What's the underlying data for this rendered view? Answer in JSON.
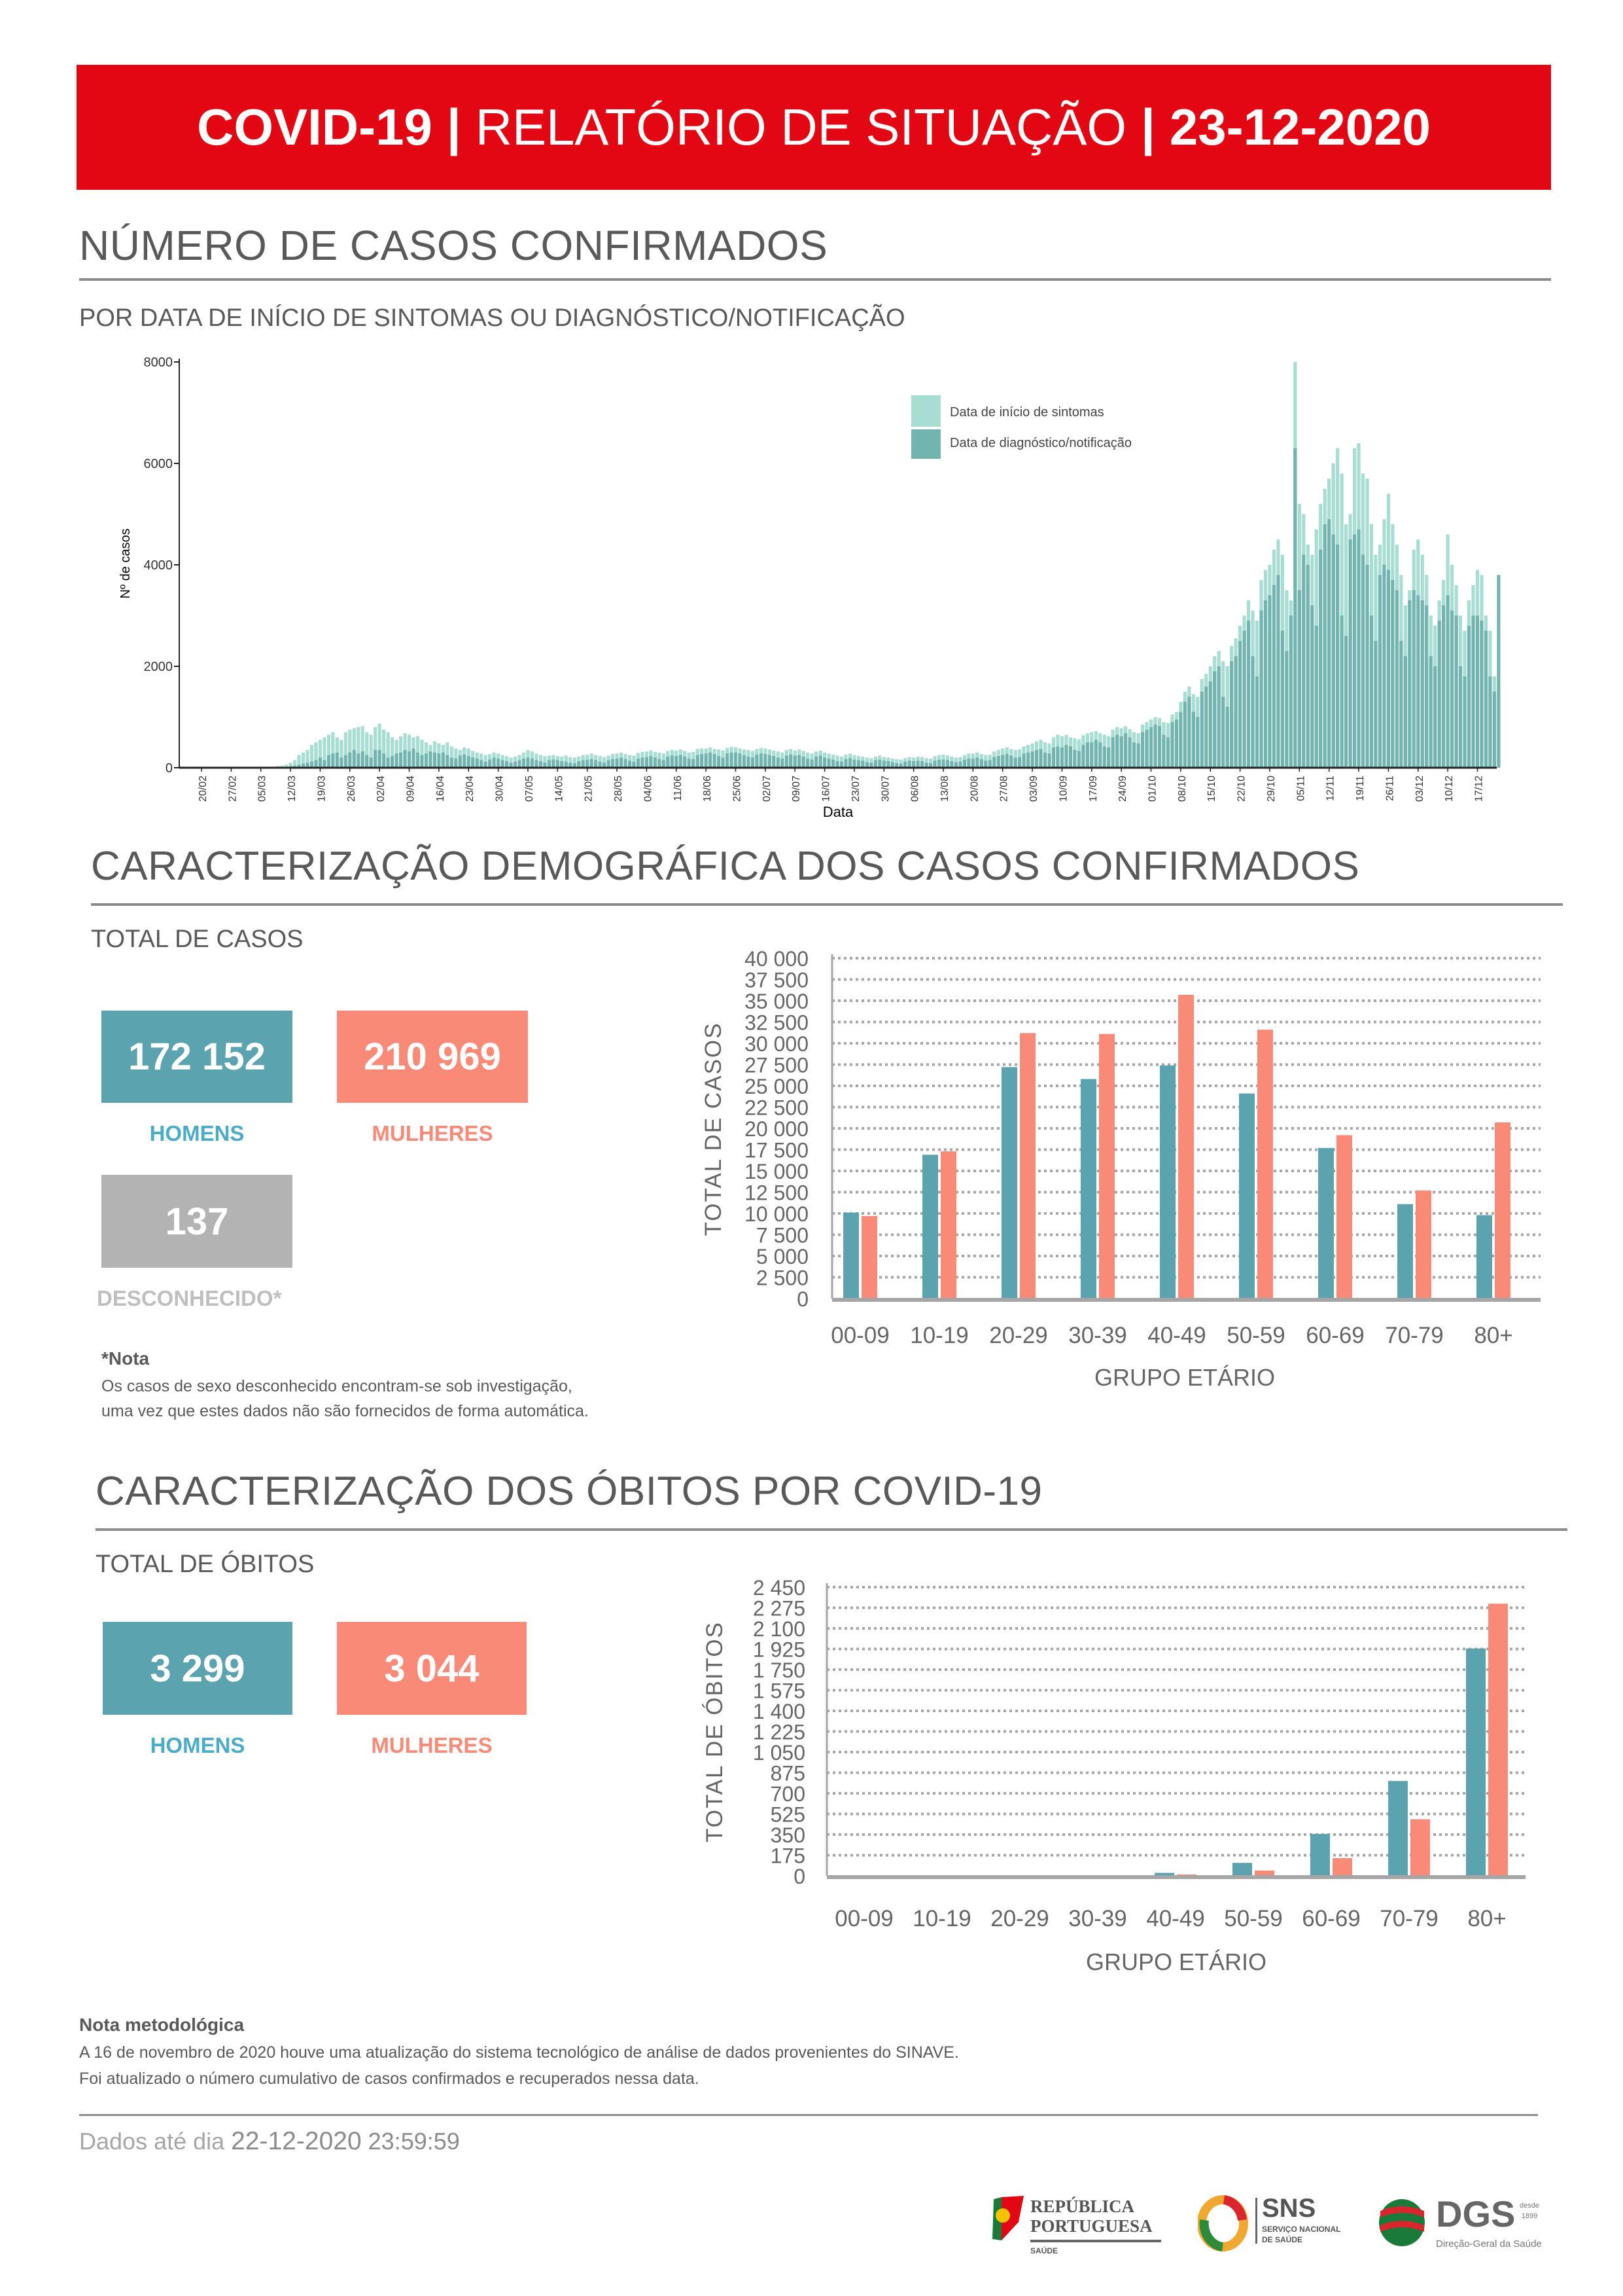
{
  "header": {
    "part1": "COVID-19",
    "sep": "|",
    "part2": "RELATÓRIO DE SITUAÇÃO",
    "date": "23-12-2020",
    "color": "#e30613"
  },
  "section1": {
    "title": "NÚMERO DE CASOS CONFIRMADOS",
    "subtitle": "POR DATA DE INÍCIO DE SINTOMAS OU DIAGNÓSTICO/NOTIFICAÇÃO"
  },
  "section2": {
    "title": "CARACTERIZAÇÃO DEMOGRÁFICA DOS CASOS CONFIRMADOS",
    "total_label": "TOTAL DE CASOS",
    "men_value": "172 152",
    "men_label": "HOMENS",
    "women_value": "210 969",
    "women_label": "MULHERES",
    "unknown_value": "137",
    "unknown_label": "DESCONHECIDO*",
    "note_title": "*Nota",
    "note_line1": "Os casos de sexo desconhecido encontram-se sob investigação,",
    "note_line2": "uma vez que estes dados não são fornecidos de forma automática."
  },
  "section3": {
    "title": "CARACTERIZAÇÃO DOS ÓBITOS POR COVID-19",
    "total_label": "TOTAL DE ÓBITOS",
    "men_value": "3 299",
    "men_label": "HOMENS",
    "women_value": "3 044",
    "women_label": "MULHERES"
  },
  "methodology": {
    "title": "Nota metodológica",
    "line1": "A 16 de novembro de 2020 houve uma atualização do sistema tecnológico de análise de dados provenientes do SINAVE.",
    "line2": "Foi atualizado o número cumulativo de casos confirmados e recuperados nessa data."
  },
  "footer": {
    "prefix": "Dados até dia ",
    "date": "22-12-2020",
    "time": " 23:59:59"
  },
  "logos": {
    "republica": {
      "line1": "REPÚBLICA",
      "line2": "PORTUGUESA",
      "line3": "SAÚDE"
    },
    "sns": {
      "line1": "SNS",
      "line2": "SERVIÇO NACIONAL",
      "line3": "DE SAÚDE"
    },
    "dgs": {
      "line1": "DGS",
      "since": "desde",
      "year": "1899",
      "line2": "Direção-Geral da Saúde"
    }
  },
  "colors": {
    "men": "#5ba3ae",
    "women": "#fa8a78",
    "unknown": "#b3b3b3",
    "men_label": "#4bacc6",
    "onset": "#a8ddd4",
    "notification": "#72b5b0"
  },
  "chart_data": [
    {
      "type": "bar",
      "ylabel": "Nº de casos",
      "xlabel": "Data",
      "ylim": [
        0,
        8000
      ],
      "yticks": [
        0,
        2000,
        4000,
        6000,
        8000
      ],
      "grid": false,
      "legend_position": "top-right",
      "x_tick_labels": [
        "20/02",
        "27/02",
        "05/03",
        "12/03",
        "19/03",
        "26/03",
        "02/04",
        "09/04",
        "16/04",
        "23/04",
        "30/04",
        "07/05",
        "14/05",
        "21/05",
        "28/05",
        "04/06",
        "11/06",
        "18/06",
        "25/06",
        "02/07",
        "09/07",
        "16/07",
        "23/07",
        "30/07",
        "06/08",
        "13/08",
        "20/08",
        "27/08",
        "03/09",
        "10/09",
        "17/09",
        "24/09",
        "01/10",
        "08/10",
        "15/10",
        "22/10",
        "29/10",
        "05/11",
        "12/11",
        "19/11",
        "26/11",
        "03/12",
        "10/12",
        "17/12"
      ],
      "series": [
        {
          "name": "Data de início de sintomas",
          "color": "#a8ddd4",
          "values": [
            0,
            0,
            0,
            0,
            0,
            0,
            0,
            0,
            0,
            0,
            1,
            2,
            3,
            5,
            8,
            10,
            15,
            20,
            30,
            40,
            60,
            100,
            150,
            250,
            300,
            350,
            450,
            500,
            550,
            600,
            650,
            700,
            600,
            550,
            700,
            750,
            780,
            800,
            820,
            700,
            650,
            800,
            870,
            750,
            700,
            600,
            550,
            620,
            680,
            650,
            600,
            620,
            550,
            500,
            450,
            520,
            480,
            450,
            500,
            420,
            380,
            350,
            400,
            380,
            330,
            300,
            280,
            250,
            270,
            300,
            280,
            250,
            230,
            200,
            220,
            250,
            300,
            350,
            320,
            280,
            250,
            230,
            240,
            250,
            230,
            220,
            240,
            210,
            200,
            220,
            250,
            260,
            280,
            250,
            230,
            210,
            240,
            270,
            280,
            300,
            270,
            250,
            240,
            290,
            310,
            320,
            340,
            310,
            300,
            280,
            330,
            350,
            340,
            360,
            330,
            300,
            310,
            370,
            380,
            380,
            400,
            370,
            360,
            340,
            390,
            410,
            400,
            380,
            360,
            350,
            330,
            370,
            390,
            380,
            360,
            340,
            320,
            300,
            350,
            370,
            340,
            360,
            330,
            300,
            280,
            320,
            340,
            300,
            280,
            260,
            240,
            220,
            260,
            280,
            250,
            230,
            220,
            200,
            190,
            220,
            240,
            210,
            200,
            180,
            170,
            160,
            190,
            210,
            200,
            220,
            210,
            190,
            180,
            230,
            250,
            260,
            240,
            220,
            200,
            210,
            250,
            280,
            280,
            300,
            270,
            250,
            260,
            320,
            350,
            380,
            400,
            370,
            350,
            360,
            420,
            450,
            480,
            520,
            550,
            500,
            480,
            600,
            650,
            620,
            650,
            600,
            580,
            560,
            640,
            680,
            700,
            720,
            680,
            650,
            620,
            750,
            800,
            780,
            820,
            760,
            700,
            680,
            850,
            900,
            950,
            1000,
            980,
            900,
            880,
            1050,
            1100,
            1300,
            1500,
            1600,
            1450,
            1400,
            1750,
            1850,
            2000,
            2200,
            2300,
            2100,
            2000,
            2400,
            2550,
            2800,
            3000,
            3300,
            3100,
            2900,
            3700,
            3900,
            4000,
            4300,
            4500,
            4200,
            3500,
            3300,
            8000,
            5200,
            5000,
            4400,
            4200,
            4700,
            5200,
            5500,
            5700,
            6000,
            6300,
            5800,
            4800,
            5000,
            6300,
            6400,
            5800,
            5700,
            4800,
            4200,
            4400,
            4900,
            5400,
            4800,
            4400,
            3800,
            3200,
            3500,
            4300,
            4500,
            4200,
            3800,
            3000,
            2800,
            3300,
            3700,
            4600,
            4000,
            3600,
            3000,
            2700,
            3300,
            3600,
            3900,
            3800,
            3000,
            2700,
            1800,
            1500
          ]
        },
        {
          "name": "Data de diagnóstico/notificação",
          "color": "#72b5b0",
          "values": [
            0,
            0,
            0,
            0,
            0,
            0,
            0,
            0,
            0,
            0,
            0,
            0,
            0,
            2,
            2,
            3,
            5,
            8,
            10,
            15,
            20,
            30,
            40,
            60,
            80,
            100,
            120,
            150,
            200,
            150,
            250,
            280,
            300,
            200,
            250,
            300,
            350,
            280,
            320,
            250,
            200,
            350,
            350,
            280,
            200,
            230,
            280,
            300,
            350,
            320,
            380,
            300,
            250,
            280,
            320,
            300,
            280,
            300,
            250,
            200,
            180,
            240,
            260,
            230,
            200,
            180,
            150,
            120,
            160,
            200,
            180,
            150,
            130,
            100,
            120,
            150,
            180,
            200,
            180,
            150,
            130,
            100,
            150,
            160,
            150,
            130,
            120,
            100,
            90,
            130,
            150,
            160,
            170,
            150,
            120,
            100,
            150,
            170,
            180,
            200,
            170,
            140,
            120,
            180,
            200,
            210,
            230,
            200,
            170,
            150,
            220,
            240,
            230,
            250,
            220,
            180,
            170,
            250,
            270,
            280,
            300,
            270,
            230,
            200,
            280,
            300,
            300,
            280,
            250,
            220,
            200,
            260,
            280,
            270,
            250,
            230,
            200,
            180,
            240,
            260,
            240,
            250,
            220,
            180,
            160,
            220,
            240,
            200,
            180,
            160,
            130,
            120,
            170,
            190,
            160,
            150,
            140,
            110,
            100,
            150,
            160,
            140,
            130,
            110,
            90,
            80,
            120,
            140,
            130,
            140,
            130,
            100,
            90,
            140,
            160,
            160,
            150,
            130,
            110,
            120,
            160,
            180,
            180,
            200,
            170,
            140,
            150,
            210,
            230,
            250,
            270,
            240,
            200,
            210,
            280,
            300,
            320,
            350,
            370,
            300,
            280,
            400,
            420,
            400,
            450,
            420,
            350,
            330,
            450,
            500,
            500,
            550,
            500,
            420,
            400,
            600,
            650,
            620,
            680,
            600,
            500,
            480,
            700,
            750,
            800,
            850,
            820,
            650,
            600,
            900,
            950,
            1100,
            1300,
            1400,
            1100,
            1000,
            1500,
            1600,
            1700,
            1900,
            2000,
            1400,
            1200,
            2100,
            2200,
            2500,
            2700,
            2900,
            2200,
            1800,
            3100,
            3300,
            3400,
            3600,
            3800,
            2700,
            2300,
            3000,
            6300,
            3500,
            4200,
            4000,
            3200,
            2800,
            4300,
            4800,
            4900,
            4600,
            4400,
            3000,
            2600,
            4500,
            4600,
            4700,
            4200,
            4000,
            3000,
            2500,
            3800,
            4000,
            3900,
            3700,
            3500,
            2500,
            2200,
            3300,
            3500,
            3400,
            3300,
            3200,
            2200,
            2000,
            2900,
            3200,
            3400,
            3100,
            3000,
            2000,
            1800,
            2800,
            3000,
            3000,
            2900,
            2700,
            1800,
            1500,
            3800
          ]
        }
      ]
    },
    {
      "type": "bar",
      "ylabel": "TOTAL DE CASOS",
      "xlabel": "GRUPO ETÁRIO",
      "ylim": [
        0,
        40000
      ],
      "yticks": [
        "0",
        "2 500",
        "5 000",
        "7 500",
        "10 000",
        "12 500",
        "15 000",
        "17 500",
        "20 000",
        "22 500",
        "25 000",
        "27 500",
        "30 000",
        "32 500",
        "35 000",
        "37 500",
        "40 000"
      ],
      "ytick_step": 2500,
      "grid": true,
      "categories": [
        "00-09",
        "10-19",
        "20-29",
        "30-39",
        "40-49",
        "50-59",
        "60-69",
        "70-79",
        "80+"
      ],
      "series": [
        {
          "color": "#5ba3ae",
          "values": [
            10100,
            16900,
            27200,
            25800,
            27400,
            24100,
            17700,
            11100,
            9800
          ]
        },
        {
          "color": "#fa8a78",
          "values": [
            9700,
            17300,
            31200,
            31100,
            35700,
            31600,
            19200,
            12700,
            20700
          ]
        }
      ]
    },
    {
      "type": "bar",
      "ylabel": "TOTAL DE ÓBITOS",
      "xlabel": "GRUPO ETÁRIO",
      "ylim": [
        0,
        2450
      ],
      "yticks": [
        "0",
        "175",
        "350",
        "525",
        "700",
        "875",
        "1 050",
        "1 225",
        "1 400",
        "1 575",
        "1 750",
        "1 925",
        "2 100",
        "2 275",
        "2 450"
      ],
      "ytick_step": 175,
      "grid": true,
      "categories": [
        "00-09",
        "10-19",
        "20-29",
        "30-39",
        "40-49",
        "50-59",
        "60-69",
        "70-79",
        "80+"
      ],
      "series": [
        {
          "color": "#5ba3ae",
          "values": [
            0,
            0,
            1,
            4,
            25,
            110,
            355,
            805,
            1930
          ]
        },
        {
          "color": "#fa8a78",
          "values": [
            0,
            0,
            0,
            2,
            12,
            45,
            150,
            480,
            2310
          ]
        }
      ]
    }
  ]
}
